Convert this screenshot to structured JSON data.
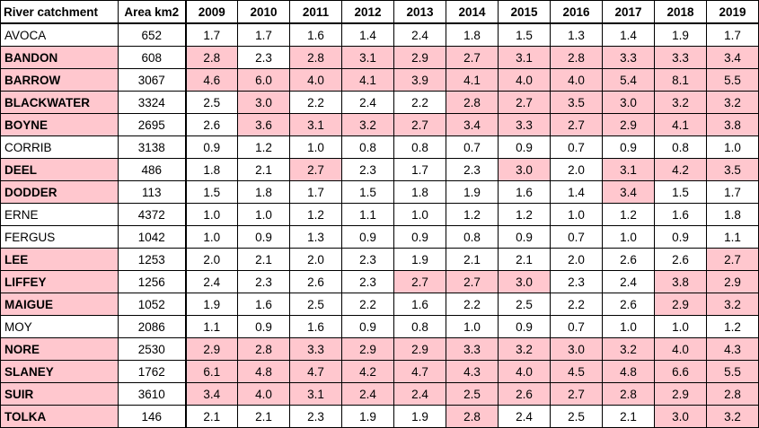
{
  "table": {
    "headers": [
      "River catchment",
      "Area km2",
      "2009",
      "2010",
      "2011",
      "2012",
      "2013",
      "2014",
      "2015",
      "2016",
      "2017",
      "2018",
      "2019"
    ],
    "highlight_color": "#ffc7ce",
    "rows": [
      {
        "name": "AVOCA",
        "bold": false,
        "name_highlight": false,
        "area": "652",
        "values": [
          "1.7",
          "1.7",
          "1.6",
          "1.4",
          "2.4",
          "1.8",
          "1.5",
          "1.3",
          "1.4",
          "1.9",
          "1.7"
        ],
        "highlight": [
          false,
          false,
          false,
          false,
          false,
          false,
          false,
          false,
          false,
          false,
          false
        ]
      },
      {
        "name": "BANDON",
        "bold": true,
        "name_highlight": true,
        "area": "608",
        "values": [
          "2.8",
          "2.3",
          "2.8",
          "3.1",
          "2.9",
          "2.7",
          "3.1",
          "2.8",
          "3.3",
          "3.3",
          "3.4"
        ],
        "highlight": [
          true,
          false,
          true,
          true,
          true,
          true,
          true,
          true,
          true,
          true,
          true
        ]
      },
      {
        "name": "BARROW",
        "bold": true,
        "name_highlight": true,
        "area": "3067",
        "values": [
          "4.6",
          "6.0",
          "4.0",
          "4.1",
          "3.9",
          "4.1",
          "4.0",
          "4.0",
          "5.4",
          "8.1",
          "5.5"
        ],
        "highlight": [
          true,
          true,
          true,
          true,
          true,
          true,
          true,
          true,
          true,
          true,
          true
        ]
      },
      {
        "name": "BLACKWATER",
        "bold": true,
        "name_highlight": true,
        "area": "3324",
        "values": [
          "2.5",
          "3.0",
          "2.2",
          "2.4",
          "2.2",
          "2.8",
          "2.7",
          "3.5",
          "3.0",
          "3.2",
          "3.2"
        ],
        "highlight": [
          false,
          true,
          false,
          false,
          false,
          true,
          true,
          true,
          true,
          true,
          true
        ]
      },
      {
        "name": "BOYNE",
        "bold": true,
        "name_highlight": true,
        "area": "2695",
        "values": [
          "2.6",
          "3.6",
          "3.1",
          "3.2",
          "2.7",
          "3.4",
          "3.3",
          "2.7",
          "2.9",
          "4.1",
          "3.8"
        ],
        "highlight": [
          false,
          true,
          true,
          true,
          true,
          true,
          true,
          true,
          true,
          true,
          true
        ]
      },
      {
        "name": "CORRIB",
        "bold": false,
        "name_highlight": false,
        "area": "3138",
        "values": [
          "0.9",
          "1.2",
          "1.0",
          "0.8",
          "0.8",
          "0.7",
          "0.9",
          "0.7",
          "0.9",
          "0.8",
          "1.0"
        ],
        "highlight": [
          false,
          false,
          false,
          false,
          false,
          false,
          false,
          false,
          false,
          false,
          false
        ]
      },
      {
        "name": "DEEL",
        "bold": true,
        "name_highlight": true,
        "area": "486",
        "values": [
          "1.8",
          "2.1",
          "2.7",
          "2.3",
          "1.7",
          "2.3",
          "3.0",
          "2.0",
          "3.1",
          "4.2",
          "3.5"
        ],
        "highlight": [
          false,
          false,
          true,
          false,
          false,
          false,
          true,
          false,
          true,
          true,
          true
        ]
      },
      {
        "name": "DODDER",
        "bold": true,
        "name_highlight": true,
        "area": "113",
        "values": [
          "1.5",
          "1.8",
          "1.7",
          "1.5",
          "1.8",
          "1.9",
          "1.6",
          "1.4",
          "3.4",
          "1.5",
          "1.7"
        ],
        "highlight": [
          false,
          false,
          false,
          false,
          false,
          false,
          false,
          false,
          true,
          false,
          false
        ]
      },
      {
        "name": "ERNE",
        "bold": false,
        "name_highlight": false,
        "area": "4372",
        "values": [
          "1.0",
          "1.0",
          "1.2",
          "1.1",
          "1.0",
          "1.2",
          "1.2",
          "1.0",
          "1.2",
          "1.6",
          "1.8"
        ],
        "highlight": [
          false,
          false,
          false,
          false,
          false,
          false,
          false,
          false,
          false,
          false,
          false
        ]
      },
      {
        "name": "FERGUS",
        "bold": false,
        "name_highlight": false,
        "area": "1042",
        "values": [
          "1.0",
          "0.9",
          "1.3",
          "0.9",
          "0.9",
          "0.8",
          "0.9",
          "0.7",
          "1.0",
          "0.9",
          "1.1"
        ],
        "highlight": [
          false,
          false,
          false,
          false,
          false,
          false,
          false,
          false,
          false,
          false,
          false
        ]
      },
      {
        "name": "LEE",
        "bold": true,
        "name_highlight": true,
        "area": "1253",
        "values": [
          "2.0",
          "2.1",
          "2.0",
          "2.3",
          "1.9",
          "2.1",
          "2.1",
          "2.0",
          "2.6",
          "2.6",
          "2.7"
        ],
        "highlight": [
          false,
          false,
          false,
          false,
          false,
          false,
          false,
          false,
          false,
          false,
          true
        ]
      },
      {
        "name": "LIFFEY",
        "bold": true,
        "name_highlight": true,
        "area": "1256",
        "values": [
          "2.4",
          "2.3",
          "2.6",
          "2.3",
          "2.7",
          "2.7",
          "3.0",
          "2.3",
          "2.4",
          "3.8",
          "2.9"
        ],
        "highlight": [
          false,
          false,
          false,
          false,
          true,
          true,
          true,
          false,
          false,
          true,
          true
        ]
      },
      {
        "name": "MAIGUE",
        "bold": true,
        "name_highlight": true,
        "area": "1052",
        "values": [
          "1.9",
          "1.6",
          "2.5",
          "2.2",
          "1.6",
          "2.2",
          "2.5",
          "2.2",
          "2.6",
          "2.9",
          "3.2"
        ],
        "highlight": [
          false,
          false,
          false,
          false,
          false,
          false,
          false,
          false,
          false,
          true,
          true
        ]
      },
      {
        "name": "MOY",
        "bold": false,
        "name_highlight": false,
        "area": "2086",
        "values": [
          "1.1",
          "0.9",
          "1.6",
          "0.9",
          "0.8",
          "1.0",
          "0.9",
          "0.7",
          "1.0",
          "1.0",
          "1.2"
        ],
        "highlight": [
          false,
          false,
          false,
          false,
          false,
          false,
          false,
          false,
          false,
          false,
          false
        ]
      },
      {
        "name": "NORE",
        "bold": true,
        "name_highlight": true,
        "area": "2530",
        "values": [
          "2.9",
          "2.8",
          "3.3",
          "2.9",
          "2.9",
          "3.3",
          "3.2",
          "3.0",
          "3.2",
          "4.0",
          "4.3"
        ],
        "highlight": [
          true,
          true,
          true,
          true,
          true,
          true,
          true,
          true,
          true,
          true,
          true
        ]
      },
      {
        "name": "SLANEY",
        "bold": true,
        "name_highlight": true,
        "area": "1762",
        "values": [
          "6.1",
          "4.8",
          "4.7",
          "4.2",
          "4.7",
          "4.3",
          "4.0",
          "4.5",
          "4.8",
          "6.6",
          "5.5"
        ],
        "highlight": [
          true,
          true,
          true,
          true,
          true,
          true,
          true,
          true,
          true,
          true,
          true
        ]
      },
      {
        "name": "SUIR",
        "bold": true,
        "name_highlight": true,
        "area": "3610",
        "values": [
          "3.4",
          "4.0",
          "3.1",
          "2.4",
          "2.4",
          "2.5",
          "2.6",
          "2.7",
          "2.8",
          "2.9",
          "2.8"
        ],
        "highlight": [
          true,
          true,
          true,
          true,
          true,
          true,
          true,
          true,
          true,
          true,
          true
        ]
      },
      {
        "name": "TOLKA",
        "bold": true,
        "name_highlight": true,
        "area": "146",
        "values": [
          "2.1",
          "2.1",
          "2.3",
          "1.9",
          "1.9",
          "2.8",
          "2.4",
          "2.5",
          "2.1",
          "3.0",
          "3.2"
        ],
        "highlight": [
          false,
          false,
          false,
          false,
          false,
          true,
          false,
          false,
          false,
          true,
          true
        ]
      }
    ]
  }
}
